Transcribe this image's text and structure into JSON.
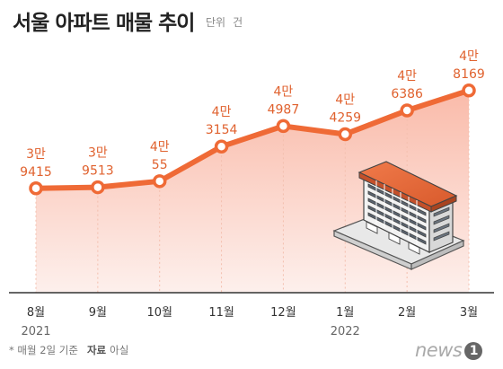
{
  "title": "서울 아파트 매물 추이",
  "unit_label": "단위",
  "unit_value": "건",
  "footnote": {
    "note": "* 매월 2일 기준",
    "source_label": "자료",
    "source": "아실"
  },
  "logo": {
    "text": "news",
    "badge": "1"
  },
  "colors": {
    "line": "#ef6a36",
    "fill_top": "#f9b3a0",
    "fill_bottom": "#fdeeea",
    "label": "#e0622f",
    "axis": "#333333",
    "grid": "#f3bfae"
  },
  "chart_data": {
    "type": "area",
    "title": "서울 아파트 매물 추이",
    "unit": "건",
    "categories": [
      "8월",
      "9월",
      "10월",
      "11월",
      "12월",
      "1월",
      "2월",
      "3월"
    ],
    "year_labels": [
      {
        "at": "8월",
        "text": "2021"
      },
      {
        "at": "1월",
        "text": "2022"
      }
    ],
    "values": [
      39415,
      39513,
      40055,
      43154,
      44987,
      44259,
      46386,
      48169
    ],
    "point_labels": [
      [
        "3만",
        "9415"
      ],
      [
        "3만",
        "9513"
      ],
      [
        "4만",
        "55"
      ],
      [
        "4만",
        "3154"
      ],
      [
        "4만",
        "4987"
      ],
      [
        "4만",
        "4259"
      ],
      [
        "4만",
        "6386"
      ],
      [
        "4만",
        "8169"
      ]
    ],
    "ylim": [
      30000,
      50000
    ],
    "grid": false,
    "legend": "none"
  }
}
